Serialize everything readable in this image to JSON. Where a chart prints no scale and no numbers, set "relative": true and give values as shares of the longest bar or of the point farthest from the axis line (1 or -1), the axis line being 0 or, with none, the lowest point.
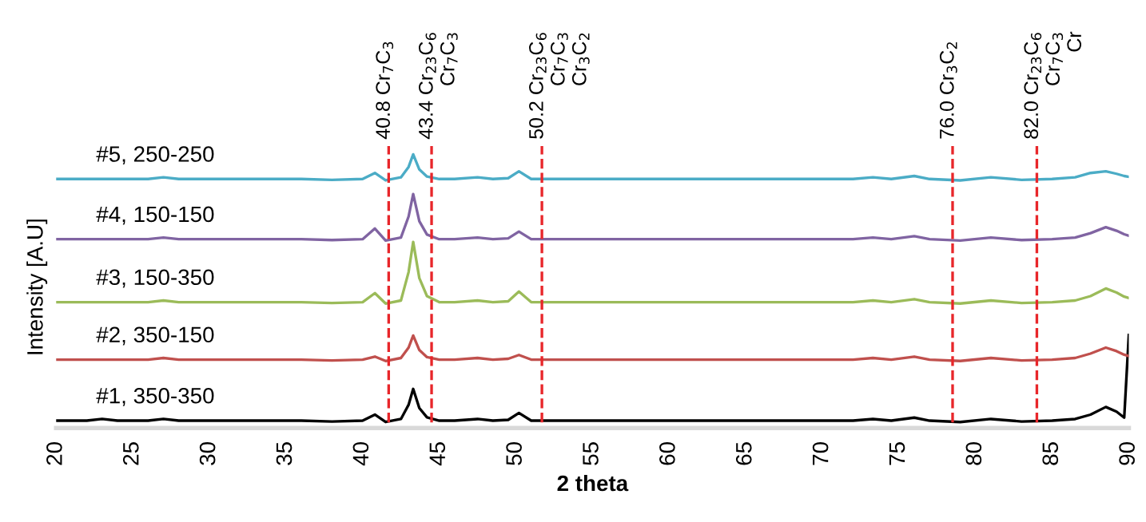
{
  "chart_data": {
    "type": "line",
    "relative": true,
    "xlabel": "2 theta",
    "ylabel": "Intensity [A.U]",
    "tick_labels": "x",
    "grid": false,
    "legend": false,
    "marker": "none",
    "line_style": "solid",
    "xlim": [
      20,
      90
    ],
    "xticks": [
      20,
      25,
      30,
      35,
      40,
      45,
      50,
      55,
      60,
      65,
      70,
      75,
      80,
      85,
      90
    ],
    "x": [
      20,
      22,
      23,
      24,
      26,
      27,
      28,
      30,
      33,
      36,
      38,
      40,
      40.8,
      41.5,
      42.5,
      43.0,
      43.3,
      43.7,
      44.2,
      45,
      46,
      47.5,
      48.5,
      49.5,
      50.2,
      51,
      53,
      56,
      60,
      64,
      68,
      72,
      73.3,
      74.5,
      76,
      77,
      79,
      81,
      83,
      85,
      86.5,
      87.5,
      88.5,
      89.2,
      89.7,
      90
    ],
    "series": [
      {
        "name": "#1, 350-350",
        "color": "#000000",
        "values": [
          0.027,
          0.027,
          0.033,
          0.027,
          0.027,
          0.033,
          0.027,
          0.027,
          0.027,
          0.027,
          0.024,
          0.027,
          0.049,
          0.022,
          0.033,
          0.085,
          0.143,
          0.073,
          0.039,
          0.027,
          0.027,
          0.033,
          0.027,
          0.03,
          0.055,
          0.027,
          0.027,
          0.027,
          0.027,
          0.027,
          0.027,
          0.027,
          0.033,
          0.027,
          0.038,
          0.027,
          0.022,
          0.033,
          0.024,
          0.027,
          0.033,
          0.049,
          0.077,
          0.06,
          0.038,
          0.34
        ]
      },
      {
        "name": "#2, 350-150",
        "color": "#c0504d",
        "values": [
          0.25,
          0.25,
          0.25,
          0.25,
          0.25,
          0.256,
          0.25,
          0.25,
          0.25,
          0.25,
          0.247,
          0.25,
          0.261,
          0.245,
          0.256,
          0.294,
          0.338,
          0.285,
          0.259,
          0.25,
          0.25,
          0.256,
          0.25,
          0.253,
          0.267,
          0.25,
          0.25,
          0.25,
          0.25,
          0.25,
          0.25,
          0.25,
          0.256,
          0.25,
          0.261,
          0.25,
          0.245,
          0.256,
          0.247,
          0.25,
          0.256,
          0.272,
          0.294,
          0.281,
          0.268,
          0.263
        ]
      },
      {
        "name": "#3, 150-350",
        "color": "#9bbb59",
        "values": [
          0.46,
          0.46,
          0.46,
          0.46,
          0.46,
          0.466,
          0.46,
          0.46,
          0.46,
          0.46,
          0.457,
          0.46,
          0.493,
          0.455,
          0.466,
          0.57,
          0.68,
          0.548,
          0.482,
          0.46,
          0.46,
          0.466,
          0.46,
          0.463,
          0.499,
          0.46,
          0.46,
          0.46,
          0.46,
          0.46,
          0.46,
          0.46,
          0.466,
          0.46,
          0.471,
          0.46,
          0.455,
          0.466,
          0.457,
          0.46,
          0.466,
          0.482,
          0.51,
          0.495,
          0.48,
          0.475
        ]
      },
      {
        "name": "#4, 150-150",
        "color": "#8064a2",
        "values": [
          0.69,
          0.69,
          0.69,
          0.69,
          0.69,
          0.696,
          0.69,
          0.69,
          0.69,
          0.69,
          0.687,
          0.69,
          0.729,
          0.685,
          0.696,
          0.773,
          0.855,
          0.756,
          0.707,
          0.69,
          0.69,
          0.696,
          0.69,
          0.693,
          0.718,
          0.69,
          0.69,
          0.69,
          0.69,
          0.69,
          0.69,
          0.69,
          0.696,
          0.69,
          0.701,
          0.69,
          0.685,
          0.696,
          0.687,
          0.69,
          0.696,
          0.712,
          0.734,
          0.721,
          0.708,
          0.703
        ]
      },
      {
        "name": "#5, 250-250",
        "color": "#4bacc6",
        "values": [
          0.91,
          0.91,
          0.91,
          0.91,
          0.91,
          0.916,
          0.91,
          0.91,
          0.91,
          0.91,
          0.907,
          0.91,
          0.932,
          0.905,
          0.916,
          0.954,
          1.0,
          0.945,
          0.919,
          0.91,
          0.91,
          0.916,
          0.91,
          0.913,
          0.938,
          0.91,
          0.91,
          0.91,
          0.91,
          0.91,
          0.91,
          0.91,
          0.916,
          0.91,
          0.921,
          0.91,
          0.905,
          0.916,
          0.907,
          0.91,
          0.916,
          0.932,
          0.938,
          0.929,
          0.921,
          0.918
        ]
      }
    ],
    "ref_lines": [
      {
        "axis": "x",
        "value": 41.7,
        "label": "40.8 Cr$_{7}$C$_{3}$",
        "color": "#e8262a",
        "line_style": "dashed"
      },
      {
        "axis": "x",
        "value": 44.5,
        "label": "43.4 Cr$_{23}$C$_{6}$\nCr$_{7}$C$_{3}$",
        "color": "#e8262a",
        "line_style": "dashed"
      },
      {
        "axis": "x",
        "value": 51.7,
        "label": "50.2 Cr$_{23}$C$_{6}$\nCr$_{7}$C$_{3}$\nCr$_{3}$C$_{2}$",
        "color": "#e8262a",
        "line_style": "dashed"
      },
      {
        "axis": "x",
        "value": 78.5,
        "label": "76.0 Cr$_{3}$C$_{2}$",
        "color": "#e8262a",
        "line_style": "dashed"
      },
      {
        "axis": "x",
        "value": 84.0,
        "label": "82.0 Cr$_{23}$C$_{6}$\nCr$_{7}$C$_{3}$\nCr",
        "color": "#e8262a",
        "line_style": "dashed"
      }
    ]
  }
}
